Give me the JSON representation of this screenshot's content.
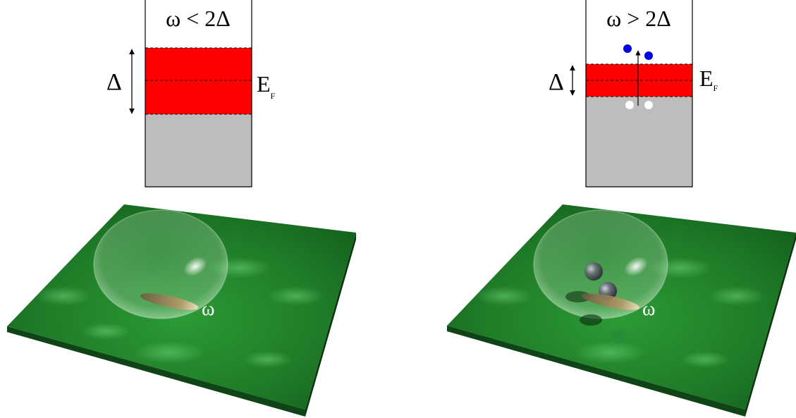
{
  "panels": [
    {
      "condition_label": "ω < 2Δ",
      "gap_label": "Δ",
      "fermi_label": "E",
      "fermi_subscript": "F",
      "omega_label": "ω",
      "quasiparticles": {
        "electrons": 0,
        "holes": 0
      }
    },
    {
      "condition_label": "ω > 2Δ",
      "gap_label": "Δ",
      "fermi_label": "E",
      "fermi_subscript": "F",
      "omega_label": "ω",
      "quasiparticles": {
        "electrons": 2,
        "holes": 2
      }
    }
  ],
  "colors": {
    "gap_band": "#ff0000",
    "filled_band": "#bdbdbd",
    "electron": "#0000dd",
    "hole": "#ffffff",
    "slab_top": "#1f7a2a",
    "slab_side": "#0f4416",
    "bubble": "#d8eed8"
  }
}
